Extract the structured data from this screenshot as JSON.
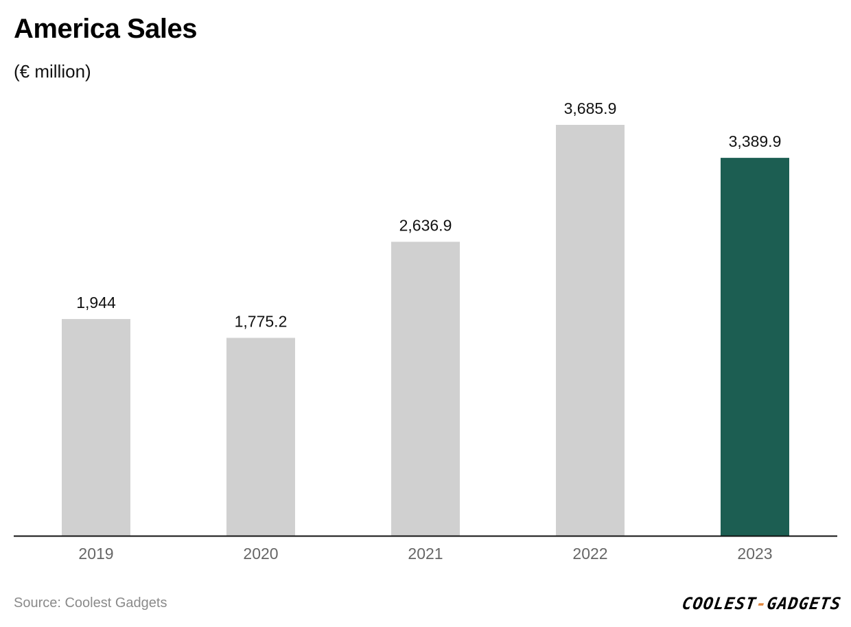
{
  "header": {
    "title": "America Sales",
    "subtitle": "(€ million)"
  },
  "footer": {
    "source": "Source: Coolest Gadgets",
    "logo_part1": "COOLEST",
    "logo_dash": "-",
    "logo_part2": "GADGETS"
  },
  "colors": {
    "bar_default": "#d0d0d0",
    "bar_highlight": "#1c5e52",
    "axis": "#111111",
    "tick_label": "#666666",
    "data_label": "#111111"
  },
  "chart_data": {
    "type": "bar",
    "title": "America Sales",
    "subtitle": "(€ million)",
    "categories": [
      "2019",
      "2020",
      "2021",
      "2022",
      "2023"
    ],
    "values": [
      1944,
      1775.2,
      2636.9,
      3685.9,
      3389.9
    ],
    "labels": [
      "1,944",
      "1,775.2",
      "2,636.9",
      "3,685.9",
      "3,389.9"
    ],
    "highlight_index": 4,
    "ylim": [
      0,
      3685.9
    ],
    "grid": false,
    "legend": "none"
  }
}
